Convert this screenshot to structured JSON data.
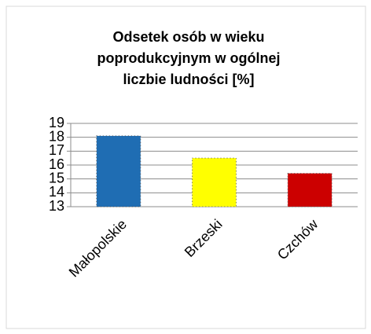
{
  "chart_data": {
    "type": "bar",
    "title": "Odsetek osób w wieku poprodukcyjnym w ogólnej liczbie ludności [%]",
    "categories": [
      "Małopolskie",
      "Brzeski",
      "Czchów"
    ],
    "values": [
      18.1,
      16.5,
      15.4
    ],
    "colors": [
      "#1f6db3",
      "#ffff00",
      "#cc0000"
    ],
    "ylim": [
      13,
      19
    ],
    "yticks": [
      13,
      14,
      15,
      16,
      17,
      18,
      19
    ],
    "grid": true
  }
}
